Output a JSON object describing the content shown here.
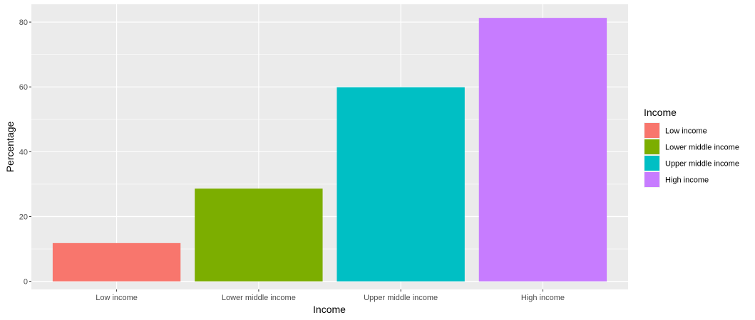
{
  "chart_data": {
    "type": "bar",
    "title": "",
    "xlabel": "Income",
    "ylabel": "Percentage",
    "categories": [
      "Low income",
      "Lower middle income",
      "Upper middle income",
      "High income"
    ],
    "values": [
      11.8,
      28.6,
      59.9,
      81.3
    ],
    "colors": [
      "#F8766D",
      "#7CAE00",
      "#00BFC4",
      "#C77CFF"
    ],
    "ylim": [
      -2.5,
      85.5
    ],
    "yticks": [
      0,
      20,
      40,
      60,
      80
    ],
    "grid": true,
    "panel_background": "#EBEBEB",
    "legend": {
      "title": "Income",
      "position": "right",
      "items": [
        "Low income",
        "Lower middle income",
        "Upper middle income",
        "High income"
      ]
    }
  }
}
